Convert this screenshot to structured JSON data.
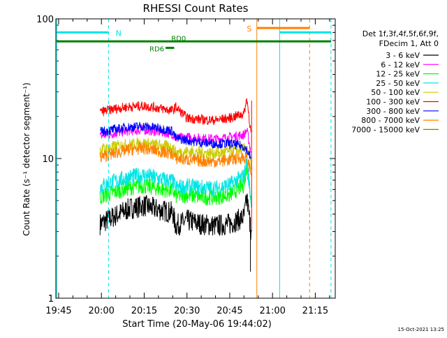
{
  "chart_data": {
    "type": "line",
    "title": "RHESSI Count Rates",
    "xlabel": "Start Time (20-May-06 19:44:02)",
    "ylabel": "Count Rate (s⁻¹ detector segment⁻¹)",
    "yscale": "log",
    "ylim": [
      1,
      100
    ],
    "xlim": [
      "19:44:02",
      "21:22:00"
    ],
    "x_ticks": [
      "19:45",
      "20:00",
      "20:15",
      "20:30",
      "20:45",
      "21:00",
      "21:15"
    ],
    "y_ticks": [
      "1",
      "10",
      "100"
    ],
    "grid": false,
    "legend_position": "right",
    "legend_header": [
      "Det 1f,3f,4f,5f,6f,9f,",
      "FDecim 1, Att 0"
    ],
    "timestamp": "15-Oct-2021 13:25",
    "series": [
      {
        "name": "3 - 6 keV",
        "color": "#000000",
        "x": [
          "19:59:30",
          "20:05",
          "20:10",
          "20:15",
          "20:20",
          "20:25",
          "20:26",
          "20:30",
          "20:35",
          "20:40",
          "20:45",
          "20:50",
          "20:51",
          "20:52:30"
        ],
        "y": [
          3.4,
          3.9,
          4.4,
          4.6,
          4.3,
          4.1,
          3.3,
          3.6,
          3.4,
          3.3,
          3.4,
          3.8,
          5.2,
          3.0
        ]
      },
      {
        "name": "6 - 12 keV",
        "color": "#ff00ff",
        "x": [
          "19:59:30",
          "20:05",
          "20:10",
          "20:15",
          "20:20",
          "20:25",
          "20:26",
          "20:30",
          "20:35",
          "20:40",
          "20:45",
          "20:50",
          "20:51",
          "20:52:30"
        ],
        "y": [
          14.5,
          15.2,
          15.8,
          16.0,
          15.5,
          15.0,
          14.0,
          14.2,
          14.0,
          13.8,
          14.2,
          14.8,
          16.0,
          11.0
        ]
      },
      {
        "name": "12 - 25 keV",
        "color": "#00ff00",
        "x": [
          "19:59:30",
          "20:05",
          "20:10",
          "20:15",
          "20:20",
          "20:25",
          "20:26",
          "20:30",
          "20:35",
          "20:40",
          "20:45",
          "20:50",
          "20:51",
          "20:52:30"
        ],
        "y": [
          5.3,
          5.8,
          6.2,
          6.4,
          6.1,
          5.9,
          5.4,
          5.5,
          5.3,
          5.3,
          5.5,
          6.5,
          9.0,
          5.0
        ]
      },
      {
        "name": "25 - 50 keV",
        "color": "#00e5e5",
        "x": [
          "19:59:30",
          "20:05",
          "20:10",
          "20:15",
          "20:20",
          "20:25",
          "20:26",
          "20:30",
          "20:35",
          "20:40",
          "20:45",
          "20:50",
          "20:51",
          "20:52:30"
        ],
        "y": [
          6.3,
          6.9,
          7.4,
          7.6,
          7.2,
          6.9,
          6.2,
          6.3,
          6.2,
          6.1,
          6.5,
          7.5,
          9.5,
          5.0
        ]
      },
      {
        "name": "50 - 100 keV",
        "color": "#cccc00",
        "x": [
          "19:59:30",
          "20:05",
          "20:10",
          "20:15",
          "20:20",
          "20:25",
          "20:26",
          "20:30",
          "20:35",
          "20:40",
          "20:45",
          "20:50",
          "20:51",
          "20:52:30"
        ],
        "y": [
          11.5,
          12.2,
          12.6,
          12.8,
          12.4,
          12.0,
          11.0,
          11.2,
          11.0,
          10.9,
          11.2,
          11.6,
          12.0,
          9.0
        ]
      },
      {
        "name": "100 - 300 keV",
        "color": "#ff0000",
        "x": [
          "19:59:30",
          "20:05",
          "20:10",
          "20:15",
          "20:20",
          "20:25",
          "20:26",
          "20:30",
          "20:35",
          "20:40",
          "20:45",
          "20:50",
          "20:51",
          "20:52:30"
        ],
        "y": [
          21.5,
          22.8,
          23.5,
          23.8,
          23.0,
          22.0,
          23.5,
          19.5,
          19.0,
          18.8,
          19.5,
          21.0,
          27.0,
          15.0
        ]
      },
      {
        "name": "300 - 800 keV",
        "color": "#0000ff",
        "x": [
          "19:59:30",
          "20:05",
          "20:10",
          "20:15",
          "20:20",
          "20:25",
          "20:26",
          "20:30",
          "20:35",
          "20:40",
          "20:45",
          "20:50",
          "20:51",
          "20:52:30"
        ],
        "y": [
          15.5,
          16.2,
          16.8,
          17.0,
          16.5,
          15.8,
          14.0,
          13.5,
          13.0,
          12.8,
          12.8,
          12.2,
          11.5,
          10.0
        ]
      },
      {
        "name": "800 - 7000 keV",
        "color": "#ff8000",
        "x": [
          "19:59:30",
          "20:05",
          "20:10",
          "20:15",
          "20:20",
          "20:25",
          "20:26",
          "20:30",
          "20:35",
          "20:40",
          "20:45",
          "20:50",
          "20:51",
          "20:52:30"
        ],
        "y": [
          10.2,
          11.0,
          11.6,
          11.8,
          11.3,
          10.8,
          10.0,
          9.8,
          9.6,
          9.5,
          9.8,
          10.2,
          10.0,
          8.0
        ]
      },
      {
        "name": "7000 - 15000 keV",
        "color": "#808000",
        "x": [],
        "y": []
      }
    ],
    "annotations": [
      {
        "text": "N",
        "color": "#00e5e5"
      },
      {
        "text": "S",
        "color": "#ff8000"
      },
      {
        "text": "RD6",
        "color": "#008000"
      },
      {
        "text": "RD0",
        "color": "#008000"
      }
    ]
  }
}
